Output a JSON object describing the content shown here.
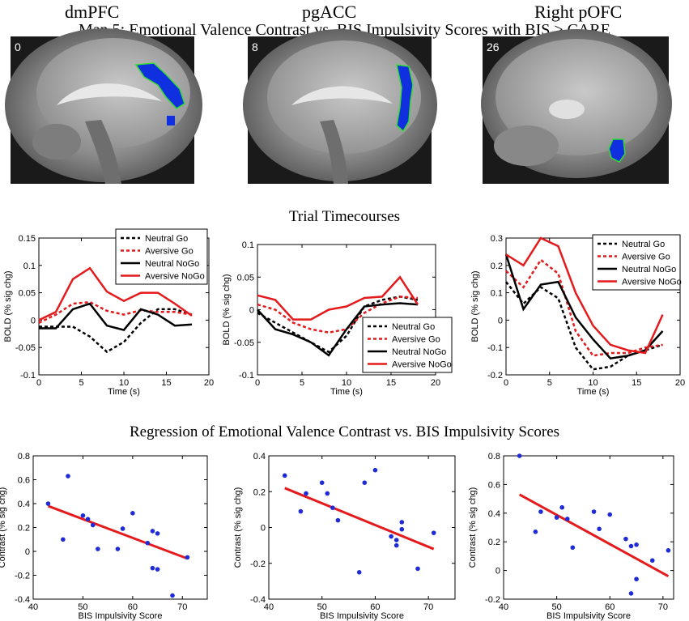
{
  "titles": {
    "regions": [
      "dmPFC",
      "pgACC",
      "Right pOFC"
    ],
    "map_title": "Map 5: Emotional Valence Contrast vs. BIS Impulsivity Scores with BIS > CARE",
    "timecourse_title": "Trial Timecourses",
    "regression_title": "Regression of Emotional Valence Contrast vs. BIS Impulsivity Scores"
  },
  "brain_images": [
    {
      "slice_label": "0"
    },
    {
      "slice_label": "8"
    },
    {
      "slice_label": "26"
    }
  ],
  "colors": {
    "neutral_go": "#000000",
    "aversive_go": "#e41a1c",
    "neutral_nogo": "#000000",
    "aversive_nogo": "#e41a1c",
    "scatter_points": "#1f2bd6",
    "fit_line": "#e41a1c",
    "activation": "#1030e0",
    "activation_outline": "#33dd33"
  },
  "chart_data": [
    {
      "type": "line",
      "panel": "timecourse-dmPFC",
      "xlabel": "Time (s)",
      "ylabel": "BOLD (% sig chg)",
      "xlim": [
        0,
        20
      ],
      "ylim": [
        -0.1,
        0.15
      ],
      "xticks": [
        "0",
        "5",
        "10",
        "15",
        "20"
      ],
      "yticks": [
        "-0.1",
        "-0.05",
        "0",
        "0.05",
        "0.1",
        "0.15"
      ],
      "xticks_v": [
        0,
        5,
        10,
        15,
        20
      ],
      "yticks_v": [
        -0.1,
        -0.05,
        0,
        0.05,
        0.1,
        0.15
      ],
      "legend_loc": "top-right",
      "x": [
        0,
        2,
        4,
        6,
        8,
        10,
        12,
        14,
        16,
        18
      ],
      "series": [
        {
          "name": "Neutral Go",
          "style": "dashed",
          "values": [
            -0.012,
            -0.012,
            -0.012,
            -0.03,
            -0.058,
            -0.04,
            -0.005,
            0.02,
            0.02,
            0.01
          ]
        },
        {
          "name": "Aversive Go",
          "style": "dashed",
          "values": [
            -0.005,
            0.01,
            0.03,
            0.033,
            0.017,
            0.01,
            0.018,
            0.015,
            0.015,
            0.01
          ]
        },
        {
          "name": "Neutral NoGo",
          "style": "solid",
          "values": [
            -0.015,
            -0.015,
            0.02,
            0.03,
            -0.01,
            -0.018,
            0.02,
            0.01,
            -0.01,
            -0.008
          ]
        },
        {
          "name": "Aversive NoGo",
          "style": "solid",
          "values": [
            0.0,
            0.015,
            0.075,
            0.095,
            0.052,
            0.035,
            0.05,
            0.05,
            0.03,
            0.008
          ]
        }
      ]
    },
    {
      "type": "line",
      "panel": "timecourse-pgACC",
      "xlabel": "Time (s)",
      "ylabel": "BOLD (% sig chg)",
      "xlim": [
        0,
        20
      ],
      "ylim": [
        -0.1,
        0.1
      ],
      "xticks": [
        "0",
        "5",
        "10",
        "15",
        "20"
      ],
      "yticks": [
        "-0.1",
        "-0.05",
        "0",
        "0.05",
        "0.1"
      ],
      "xticks_v": [
        0,
        5,
        10,
        15,
        20
      ],
      "yticks_v": [
        -0.1,
        -0.05,
        0,
        0.05,
        0.1
      ],
      "legend_loc": "bottom-right",
      "x": [
        0,
        2,
        4,
        6,
        8,
        10,
        12,
        14,
        16,
        18
      ],
      "series": [
        {
          "name": "Neutral Go",
          "style": "dashed",
          "values": [
            -0.005,
            -0.02,
            -0.035,
            -0.05,
            -0.065,
            -0.04,
            0.005,
            0.015,
            0.02,
            0.015
          ]
        },
        {
          "name": "Aversive Go",
          "style": "dashed",
          "values": [
            0.008,
            0.0,
            -0.02,
            -0.03,
            -0.035,
            -0.03,
            -0.005,
            0.01,
            0.02,
            0.018
          ]
        },
        {
          "name": "Neutral NoGo",
          "style": "solid",
          "values": [
            0.0,
            -0.03,
            -0.038,
            -0.05,
            -0.07,
            -0.03,
            0.005,
            0.008,
            0.01,
            0.008
          ]
        },
        {
          "name": "Aversive NoGo",
          "style": "solid",
          "values": [
            0.022,
            0.015,
            -0.015,
            -0.015,
            0.0,
            0.005,
            0.018,
            0.02,
            0.05,
            0.008
          ]
        }
      ]
    },
    {
      "type": "line",
      "panel": "timecourse-pOFC",
      "xlabel": "Time (s)",
      "ylabel": "BOLD (% sig chg)",
      "xlim": [
        0,
        20
      ],
      "ylim": [
        -0.2,
        0.3
      ],
      "xticks": [
        "0",
        "5",
        "10",
        "15",
        "20"
      ],
      "yticks": [
        "-0.2",
        "-0.1",
        "0",
        "0.1",
        "0.2",
        "0.3"
      ],
      "xticks_v": [
        0,
        5,
        10,
        15,
        20
      ],
      "yticks_v": [
        -0.2,
        -0.1,
        0,
        0.1,
        0.2,
        0.3
      ],
      "legend_loc": "top-right",
      "x": [
        0,
        2,
        4,
        6,
        8,
        10,
        12,
        14,
        16,
        18
      ],
      "series": [
        {
          "name": "Neutral Go",
          "style": "dashed",
          "values": [
            0.14,
            0.06,
            0.12,
            0.08,
            -0.1,
            -0.18,
            -0.17,
            -0.13,
            -0.11,
            -0.09
          ]
        },
        {
          "name": "Aversive Go",
          "style": "dashed",
          "values": [
            0.18,
            0.12,
            0.22,
            0.17,
            -0.04,
            -0.13,
            -0.12,
            -0.12,
            -0.1,
            -0.09
          ]
        },
        {
          "name": "Neutral NoGo",
          "style": "solid",
          "values": [
            0.24,
            0.04,
            0.13,
            0.14,
            0.01,
            -0.07,
            -0.14,
            -0.13,
            -0.11,
            -0.04
          ]
        },
        {
          "name": "Aversive NoGo",
          "style": "solid",
          "values": [
            0.24,
            0.2,
            0.3,
            0.27,
            0.1,
            -0.02,
            -0.09,
            -0.11,
            -0.12,
            0.02
          ]
        }
      ]
    },
    {
      "type": "scatter",
      "panel": "regression-dmPFC",
      "xlabel": "BIS Impulsivity Score",
      "ylabel": "Contrast (% sig chg)",
      "xlim": [
        40,
        75
      ],
      "ylim": [
        -0.4,
        0.8
      ],
      "xticks": [
        "40",
        "50",
        "60",
        "70"
      ],
      "yticks": [
        "-0.4",
        "-0.2",
        "0",
        "0.2",
        "0.4",
        "0.6",
        "0.8"
      ],
      "xticks_v": [
        40,
        50,
        60,
        70
      ],
      "yticks_v": [
        -0.4,
        -0.2,
        0,
        0.2,
        0.4,
        0.6,
        0.8
      ],
      "x": [
        43,
        46,
        47,
        50,
        51,
        52,
        53,
        57,
        58,
        60,
        63,
        64,
        64,
        65,
        65,
        68,
        71
      ],
      "y": [
        0.4,
        0.1,
        0.63,
        0.3,
        0.27,
        0.22,
        0.02,
        0.02,
        0.19,
        0.32,
        0.07,
        0.17,
        -0.14,
        0.15,
        -0.15,
        -0.37,
        -0.05
      ],
      "fit": {
        "x": [
          43,
          71
        ],
        "y": [
          0.38,
          -0.06
        ]
      }
    },
    {
      "type": "scatter",
      "panel": "regression-pgACC",
      "xlabel": "BIS Impulsivity Score",
      "ylabel": "Contrast (% sig chg)",
      "xlim": [
        40,
        75
      ],
      "ylim": [
        -0.4,
        0.4
      ],
      "xticks": [
        "40",
        "50",
        "60",
        "70"
      ],
      "yticks": [
        "-0.4",
        "-0.2",
        "0",
        "0.2",
        "0.4"
      ],
      "xticks_v": [
        40,
        50,
        60,
        70
      ],
      "yticks_v": [
        -0.4,
        -0.2,
        0,
        0.2,
        0.4
      ],
      "x": [
        43,
        46,
        47,
        50,
        51,
        52,
        53,
        57,
        58,
        60,
        63,
        64,
        64,
        65,
        65,
        68,
        71
      ],
      "y": [
        0.29,
        0.09,
        0.19,
        0.25,
        0.19,
        0.11,
        0.04,
        -0.25,
        0.25,
        0.32,
        -0.05,
        -0.1,
        -0.07,
        0.03,
        -0.01,
        -0.23,
        -0.03
      ],
      "fit": {
        "x": [
          43,
          71
        ],
        "y": [
          0.22,
          -0.12
        ]
      }
    },
    {
      "type": "scatter",
      "panel": "regression-pOFC",
      "xlabel": "BIS Impulsivity Score",
      "ylabel": "Contrast (% sig chg)",
      "xlim": [
        40,
        72
      ],
      "ylim": [
        -0.2,
        0.8
      ],
      "xticks": [
        "40",
        "50",
        "60",
        "70"
      ],
      "yticks": [
        "-0.2",
        "0",
        "0.2",
        "0.4",
        "0.6",
        "0.8"
      ],
      "xticks_v": [
        40,
        50,
        60,
        70
      ],
      "yticks_v": [
        -0.2,
        0,
        0.2,
        0.4,
        0.6,
        0.8
      ],
      "x": [
        43,
        46,
        47,
        50,
        51,
        52,
        53,
        57,
        58,
        60,
        63,
        64,
        64,
        65,
        65,
        68,
        71
      ],
      "y": [
        0.8,
        0.27,
        0.41,
        0.37,
        0.44,
        0.36,
        0.16,
        0.41,
        0.29,
        0.39,
        0.22,
        0.17,
        -0.16,
        0.18,
        -0.06,
        0.07,
        0.14
      ],
      "fit": {
        "x": [
          43,
          71
        ],
        "y": [
          0.53,
          -0.04
        ]
      }
    }
  ]
}
